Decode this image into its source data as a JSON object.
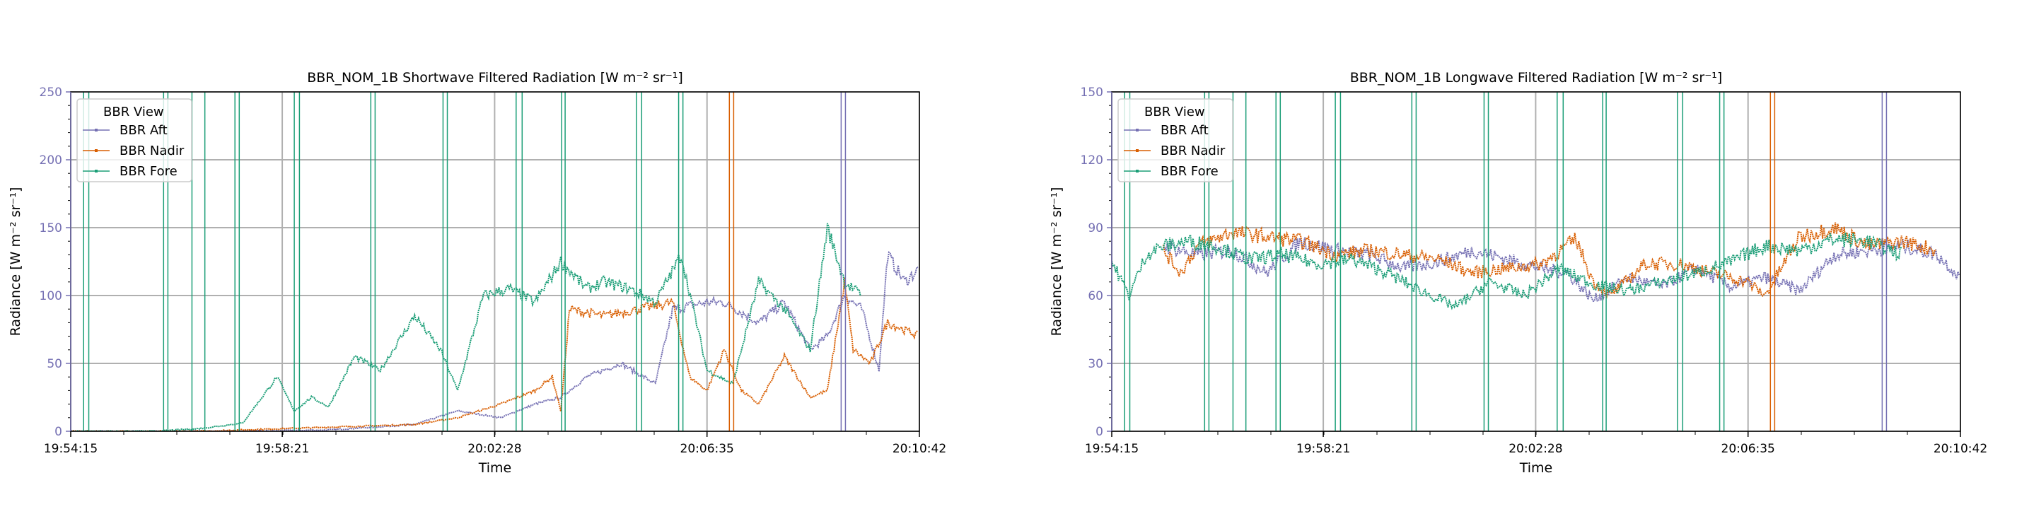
{
  "chart_data": [
    {
      "type": "line",
      "title": "BBR_NOM_1B Shortwave Filtered Radiation [W m⁻² sr⁻¹]",
      "xlabel": "Time",
      "ylabel": "Radiance [W m⁻² sr⁻¹]",
      "ylim": [
        0,
        250
      ],
      "yticks": [
        0,
        50,
        100,
        150,
        200,
        250
      ],
      "ytick_labels": [
        "0",
        "50",
        "100",
        "150",
        "200",
        "250"
      ],
      "xlim_seconds": [
        0,
        987
      ],
      "xtick_seconds": [
        0,
        246,
        493,
        740,
        987
      ],
      "xtick_labels": [
        "19:54:15",
        "19:58:21",
        "20:02:28",
        "20:06:35",
        "20:10:42"
      ],
      "grid": true,
      "legend": {
        "title": "BBR View",
        "placement": "top-left"
      },
      "series": [
        {
          "name": "BBR Aft",
          "color": "#7570b3",
          "t": [
            0,
            200,
            300,
            350,
            400,
            450,
            500,
            540,
            570,
            600,
            640,
            680,
            700,
            740,
            760,
            800,
            830,
            860,
            880,
            900,
            920,
            940,
            950,
            970,
            987
          ],
          "values": [
            0,
            0,
            1,
            3,
            5,
            15,
            10,
            20,
            25,
            40,
            50,
            35,
            90,
            95,
            95,
            80,
            95,
            60,
            70,
            100,
            90,
            45,
            130,
            110,
            120
          ]
        },
        {
          "name": "BBR Nadir",
          "color": "#d95f02",
          "t": [
            0,
            150,
            200,
            300,
            400,
            450,
            500,
            540,
            560,
            570,
            580,
            620,
            700,
            720,
            740,
            760,
            780,
            800,
            830,
            860,
            880,
            900,
            910,
            930,
            950,
            987
          ],
          "values": [
            0,
            0,
            1,
            3,
            5,
            10,
            20,
            30,
            40,
            15,
            90,
            85,
            95,
            40,
            30,
            60,
            30,
            20,
            55,
            25,
            30,
            110,
            60,
            50,
            80,
            70
          ]
        },
        {
          "name": "BBR Fore",
          "color": "#1b9e77",
          "t": [
            0,
            100,
            150,
            200,
            240,
            260,
            280,
            300,
            330,
            360,
            400,
            430,
            450,
            480,
            510,
            540,
            570,
            600,
            620,
            650,
            680,
            710,
            740,
            770,
            800,
            830,
            860,
            880,
            900,
            920
          ],
          "values": [
            0,
            0,
            2,
            6,
            40,
            15,
            25,
            18,
            55,
            45,
            85,
            60,
            30,
            100,
            105,
            95,
            125,
            105,
            110,
            105,
            95,
            130,
            45,
            35,
            110,
            90,
            60,
            150,
            110,
            100
          ]
        }
      ],
      "spikes": [
        {
          "t": [
            15,
            21,
            108,
            113,
            141,
            156,
            191,
            196,
            260,
            266,
            349,
            354,
            433,
            438,
            518,
            525,
            571,
            575,
            658,
            664,
            707,
            712
          ],
          "color": "#1b9e77"
        },
        {
          "t": [
            766,
            771
          ],
          "color": "#d95f02"
        },
        {
          "t": [
            896,
            901
          ],
          "color": "#7570b3"
        }
      ]
    },
    {
      "type": "line",
      "title": "BBR_NOM_1B Longwave Filtered Radiation [W m⁻² sr⁻¹]",
      "xlabel": "Time",
      "ylabel": "Radiance [W m⁻² sr⁻¹]",
      "ylim": [
        0,
        150
      ],
      "yticks": [
        0,
        30,
        60,
        90,
        120,
        150
      ],
      "ytick_labels": [
        "0",
        "30",
        "60",
        "90",
        "120",
        "150"
      ],
      "xlim_seconds": [
        0,
        987
      ],
      "xtick_seconds": [
        0,
        246,
        493,
        740,
        987
      ],
      "xtick_labels": [
        "19:54:15",
        "19:58:21",
        "20:02:28",
        "20:06:35",
        "20:10:42"
      ],
      "grid": true,
      "legend": {
        "title": "BBR View",
        "placement": "top-left"
      },
      "series": [
        {
          "name": "BBR Aft",
          "color": "#7570b3",
          "t": [
            60,
            100,
            140,
            180,
            220,
            260,
            300,
            340,
            380,
            420,
            460,
            500,
            530,
            560,
            600,
            640,
            680,
            720,
            760,
            800,
            840,
            880,
            920,
            960,
            987
          ],
          "values": [
            82,
            78,
            80,
            70,
            84,
            80,
            78,
            72,
            75,
            80,
            76,
            72,
            70,
            58,
            68,
            64,
            72,
            64,
            68,
            62,
            78,
            80,
            82,
            78,
            68
          ]
        },
        {
          "name": "BBR Nadir",
          "color": "#d95f02",
          "t": [
            60,
            80,
            100,
            140,
            180,
            220,
            260,
            300,
            340,
            380,
            420,
            460,
            500,
            540,
            560,
            580,
            620,
            660,
            700,
            740,
            760,
            800,
            840,
            880,
            920,
            960
          ],
          "values": [
            80,
            70,
            82,
            88,
            86,
            84,
            78,
            80,
            78,
            76,
            70,
            72,
            74,
            85,
            66,
            60,
            74,
            74,
            70,
            66,
            60,
            86,
            90,
            82,
            84,
            80
          ]
        },
        {
          "name": "BBR Fore",
          "color": "#1b9e77",
          "t": [
            0,
            20,
            40,
            60,
            90,
            120,
            160,
            200,
            240,
            280,
            320,
            360,
            400,
            440,
            480,
            520,
            560,
            600,
            640,
            680,
            720,
            760,
            800,
            840,
            880,
            920
          ],
          "values": [
            75,
            60,
            78,
            82,
            84,
            82,
            76,
            78,
            74,
            76,
            70,
            62,
            55,
            66,
            60,
            72,
            65,
            62,
            66,
            70,
            75,
            82,
            80,
            85,
            84,
            78
          ]
        }
      ],
      "spikes": [
        {
          "t": [
            15,
            21,
            108,
            113,
            141,
            156,
            191,
            196,
            260,
            266,
            349,
            354,
            433,
            438,
            518,
            525,
            571,
            575,
            658,
            664,
            707,
            712
          ],
          "color": "#1b9e77"
        },
        {
          "t": [
            766,
            771
          ],
          "color": "#d95f02"
        },
        {
          "t": [
            896,
            901
          ],
          "color": "#7570b3"
        }
      ]
    }
  ]
}
